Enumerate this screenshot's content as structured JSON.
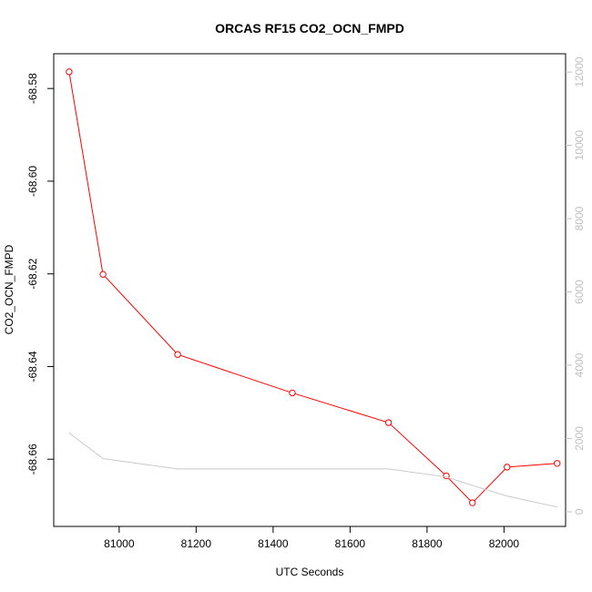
{
  "chart_data": {
    "type": "line",
    "title": "ORCAS RF15 CO2_OCN_FMPD",
    "xlabel": "UTC Seconds",
    "ylabel": "CO2_OCN_FMPD",
    "xlim": [
      80830,
      82160
    ],
    "ylim": [
      -68.6745,
      -68.5725
    ],
    "y2lim": [
      -400,
      12500
    ],
    "x_ticks": [
      81000,
      81200,
      81400,
      81600,
      81800,
      82000
    ],
    "y_ticks": [
      -68.58,
      -68.6,
      -68.62,
      -68.64,
      -68.66
    ],
    "y_tick_labels": [
      "-68.58",
      "-68.60",
      "-68.62",
      "-68.64",
      "-68.66"
    ],
    "y2_ticks": [
      0,
      2000,
      4000,
      6000,
      8000,
      10000,
      12000
    ],
    "grid": false,
    "series": [
      {
        "axis": "left",
        "color": "#ff0000",
        "marker": "open-circle",
        "x": [
          80870,
          80958,
          81152,
          81450,
          81700,
          81850,
          81918,
          82008,
          82138
        ],
        "y": [
          -68.5764,
          -68.6201,
          -68.6374,
          -68.6457,
          -68.6521,
          -68.6636,
          -68.6694,
          -68.6617,
          -68.6609
        ]
      },
      {
        "axis": "right",
        "color": "#c8c8c8",
        "marker": "none",
        "x": [
          80870,
          80958,
          81152,
          81450,
          81700,
          81850,
          81918,
          82008,
          82138
        ],
        "y": [
          2150,
          1450,
          1170,
          1170,
          1170,
          950,
          720,
          430,
          130
        ]
      }
    ]
  }
}
